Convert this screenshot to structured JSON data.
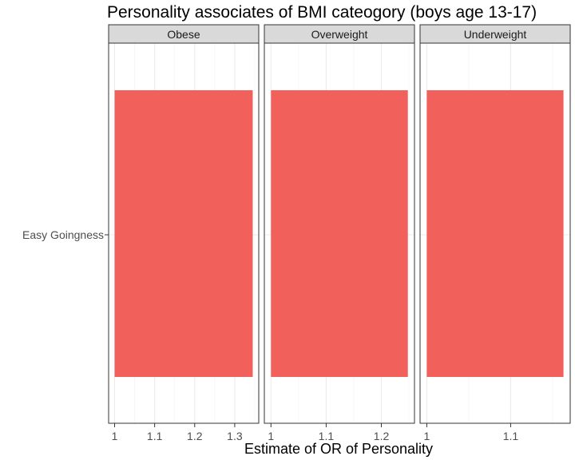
{
  "chart_data": {
    "type": "bar",
    "orientation": "horizontal",
    "title": "Personality associates of BMI cateogory (boys age 13-17)",
    "xlabel": "Estimate of OR of Personality",
    "ylabel": "",
    "categories": [
      "Easy Goingness"
    ],
    "facets": [
      {
        "label": "Obese",
        "value": 1.345,
        "xlim": [
          0.985,
          1.36
        ],
        "xticks": [
          1,
          1.1,
          1.2,
          1.3
        ],
        "xtick_labels": [
          "1",
          "1.1",
          "1.2",
          "1.3"
        ]
      },
      {
        "label": "Overweight",
        "value": 1.248,
        "xlim": [
          0.988,
          1.26
        ],
        "xticks": [
          1,
          1.1,
          1.2
        ],
        "xtick_labels": [
          "1",
          "1.1",
          "1.2"
        ]
      },
      {
        "label": "Underweight",
        "value": 1.163,
        "xlim": [
          0.992,
          1.171
        ],
        "xticks": [
          1,
          1.1
        ],
        "xtick_labels": [
          "1",
          "1.1"
        ]
      }
    ],
    "bar_color": "#F2605C",
    "strip_color": "#D9D9D9",
    "grid": true,
    "legend": "none"
  }
}
